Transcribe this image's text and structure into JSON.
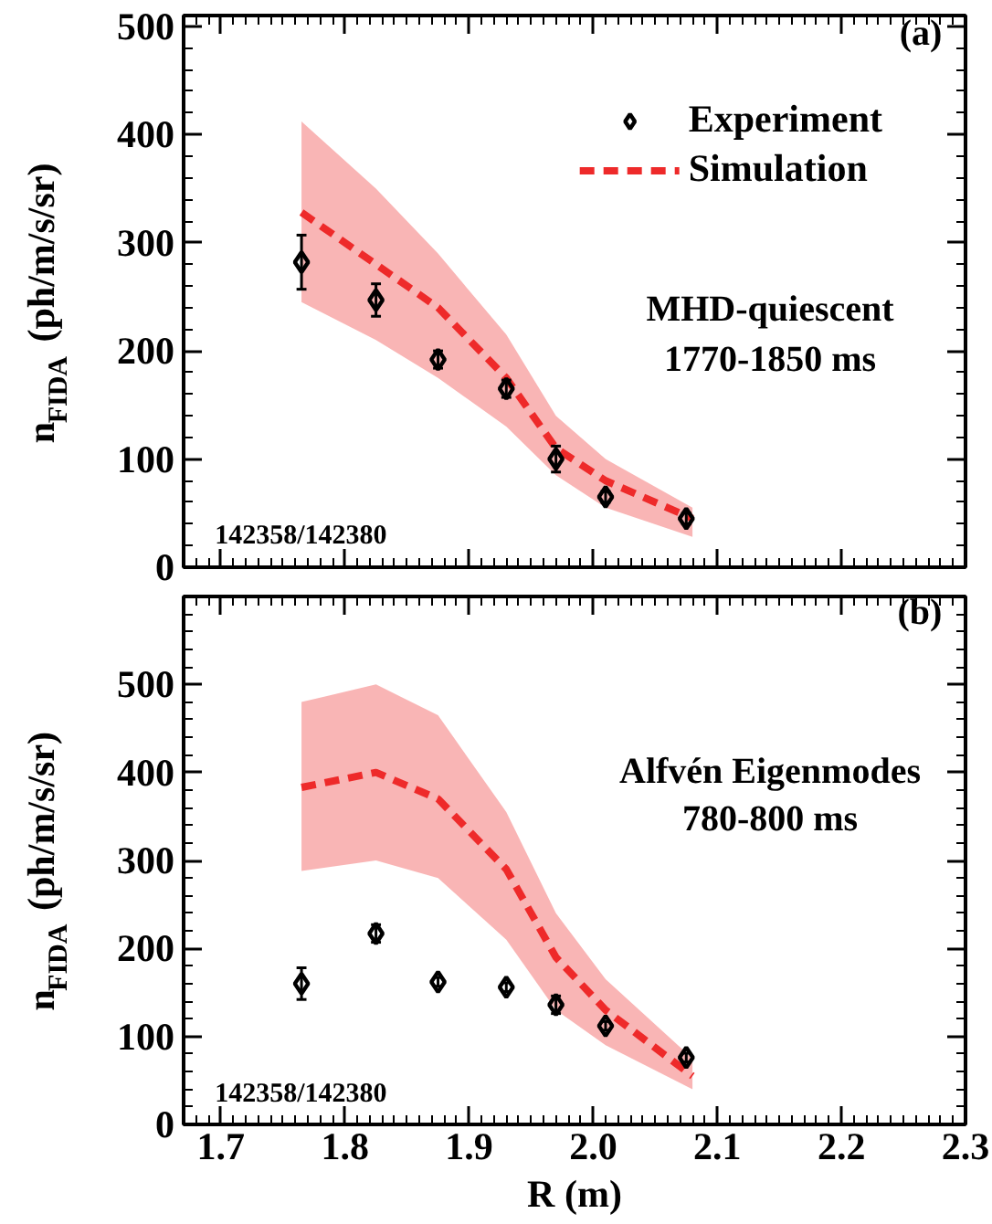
{
  "chart_data": [
    {
      "type": "line",
      "xlim": [
        1.67,
        2.3
      ],
      "xticks": [
        1.7,
        1.8,
        1.9,
        2.0,
        2.1,
        2.2,
        2.3
      ],
      "ylim": [
        0,
        510
      ],
      "yticks": [
        0,
        100,
        200,
        300,
        400,
        500
      ],
      "ylabel": "n$_{FIDA}$ (ph/m/s/sr)",
      "tick_labels": "y",
      "legend": "top right",
      "grid": false,
      "annotations": [
        "(a)",
        "MHD-quiescent",
        "1770-1850 ms",
        "142358/142380"
      ],
      "series": [
        {
          "name": "Experiment",
          "type": "scatter",
          "marker": "diamond",
          "color": "#000000",
          "x": [
            1.765,
            1.825,
            1.875,
            1.93,
            1.97,
            2.01,
            2.075
          ],
          "values": [
            282,
            247,
            192,
            165,
            100,
            65,
            45
          ],
          "errors": [
            25,
            15,
            8,
            8,
            12,
            5,
            5
          ]
        },
        {
          "name": "Simulation",
          "line_style": "dashed",
          "color": "#ee2a2a",
          "x": [
            1.765,
            1.825,
            1.875,
            1.93,
            1.97,
            2.01,
            2.08
          ],
          "values": [
            328,
            280,
            240,
            175,
            110,
            80,
            45
          ],
          "lower": [
            245,
            210,
            175,
            130,
            85,
            55,
            28
          ],
          "upper": [
            412,
            350,
            290,
            215,
            140,
            100,
            55
          ]
        }
      ]
    },
    {
      "type": "line",
      "xlim": [
        1.67,
        2.3
      ],
      "xticks": [
        1.7,
        1.8,
        1.9,
        {
          "value": 2,
          "label": "2.0"
        },
        2.1,
        2.2,
        2.3
      ],
      "ylim": [
        0,
        600
      ],
      "yticks": [
        0,
        100,
        200,
        300,
        400,
        500
      ],
      "xlabel": "R (m)",
      "ylabel": "n$_{FIDA}$ (ph/m/s/sr)",
      "grid": false,
      "annotations": [
        "(b)",
        "Alfvén Eigenmodes",
        "780-800 ms",
        "142358/142380"
      ],
      "series": [
        {
          "type": "scatter",
          "marker": "diamond",
          "color": "#000000",
          "x": [
            1.765,
            1.825,
            1.875,
            1.93,
            1.97,
            2.01,
            2.075
          ],
          "values": [
            160,
            217,
            162,
            156,
            136,
            112,
            76
          ],
          "errors": [
            18,
            10,
            5,
            5,
            10,
            5,
            5
          ]
        },
        {
          "line_style": "dashed",
          "color": "#ee2a2a",
          "x": [
            1.765,
            1.825,
            1.875,
            1.93,
            1.97,
            2.01,
            2.08
          ],
          "values": [
            383,
            400,
            370,
            290,
            190,
            130,
            55
          ],
          "lower": [
            288,
            300,
            280,
            210,
            130,
            90,
            40
          ],
          "upper": [
            480,
            500,
            465,
            355,
            240,
            165,
            75
          ]
        }
      ]
    }
  ]
}
